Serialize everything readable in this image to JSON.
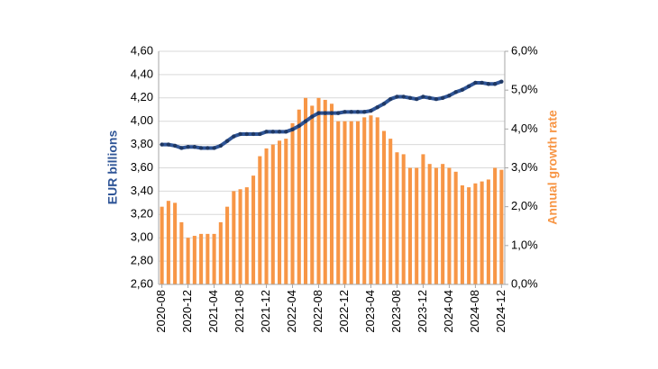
{
  "chart_data": {
    "type": "bar+line",
    "y_label": "EUR billions",
    "y2_label": "Annual growth rate",
    "categories": [
      "2020-08",
      null,
      null,
      null,
      "2020-12",
      null,
      null,
      null,
      "2021-04",
      null,
      null,
      null,
      "2021-08",
      null,
      null,
      null,
      "2021-12",
      null,
      null,
      null,
      "2022-04",
      null,
      null,
      null,
      "2022-08",
      null,
      null,
      null,
      "2022-12",
      null,
      null,
      null,
      "2023-04",
      null,
      null,
      null,
      "2023-08",
      null,
      null,
      null,
      "2023-12",
      null,
      null,
      null,
      "2024-04",
      null,
      null,
      null,
      "2024-08",
      null,
      null,
      null,
      "2024-12"
    ],
    "ylim": [
      2.6,
      4.6
    ],
    "yticks": [
      {
        "value": 2.6,
        "label": "2,60"
      },
      {
        "value": 2.8,
        "label": "2,80"
      },
      {
        "value": 3.0,
        "label": "3,00"
      },
      {
        "value": 3.2,
        "label": "3,20"
      },
      {
        "value": 3.4,
        "label": "3,40"
      },
      {
        "value": 3.6,
        "label": "3,60"
      },
      {
        "value": 3.8,
        "label": "3,80"
      },
      {
        "value": 4.0,
        "label": "4,00"
      },
      {
        "value": 4.2,
        "label": "4,20"
      },
      {
        "value": 4.4,
        "label": "4,40"
      },
      {
        "value": 4.6,
        "label": "4,60"
      }
    ],
    "y2lim": [
      0,
      6
    ],
    "y2ticks": [
      {
        "value": 0,
        "label": "0,0%"
      },
      {
        "value": 1,
        "label": "1,0%"
      },
      {
        "value": 2,
        "label": "2,0%"
      },
      {
        "value": 3,
        "label": "3,0%"
      },
      {
        "value": 4,
        "label": "4,0%"
      },
      {
        "value": 5,
        "label": "5,0%"
      },
      {
        "value": 6,
        "label": "6,0%"
      }
    ],
    "grid": true,
    "series": [
      {
        "type": "bar",
        "axis": "y2",
        "color": "#f79646",
        "values": [
          2.0,
          2.15,
          2.1,
          1.6,
          1.2,
          1.25,
          1.3,
          1.3,
          1.3,
          1.6,
          2.0,
          2.4,
          2.45,
          2.5,
          2.8,
          3.3,
          3.5,
          3.6,
          3.7,
          3.75,
          4.15,
          4.5,
          4.8,
          4.6,
          4.8,
          4.75,
          4.65,
          4.2,
          4.2,
          4.2,
          4.2,
          4.3,
          4.35,
          4.3,
          3.95,
          3.75,
          3.4,
          3.35,
          3.0,
          3.0,
          3.35,
          3.1,
          3.0,
          3.1,
          3.0,
          2.9,
          2.55,
          2.5,
          2.6,
          2.65,
          2.7,
          3.0,
          2.95
        ]
      },
      {
        "type": "line",
        "axis": "y",
        "color": "#2f5597",
        "values": [
          3.8,
          3.8,
          3.79,
          3.77,
          3.78,
          3.78,
          3.77,
          3.77,
          3.77,
          3.79,
          3.83,
          3.87,
          3.89,
          3.89,
          3.89,
          3.89,
          3.91,
          3.91,
          3.91,
          3.91,
          3.93,
          3.96,
          4.0,
          4.04,
          4.07,
          4.07,
          4.07,
          4.07,
          4.08,
          4.08,
          4.08,
          4.08,
          4.09,
          4.12,
          4.15,
          4.19,
          4.21,
          4.21,
          4.2,
          4.19,
          4.21,
          4.2,
          4.19,
          4.2,
          4.22,
          4.25,
          4.27,
          4.3,
          4.33,
          4.33,
          4.32,
          4.32,
          4.34
        ]
      }
    ]
  }
}
